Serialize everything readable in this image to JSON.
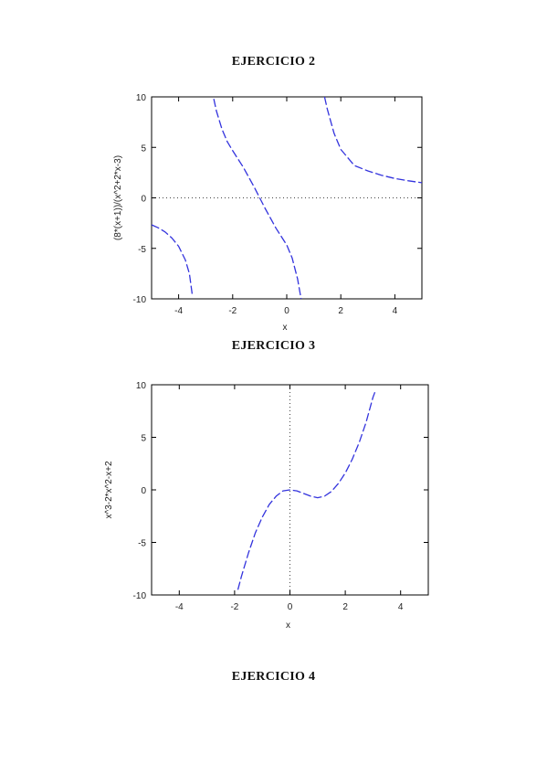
{
  "headings": {
    "ex2": "EJERCICIO 2",
    "ex3": "EJERCICIO 3",
    "ex4": "EJERCICIO 4"
  },
  "chart_data": [
    {
      "type": "line",
      "title": "",
      "xlabel": "x",
      "ylabel": "(8*(x+1))/(x^2+2*x-3)",
      "xlim": [
        -5,
        5
      ],
      "ylim": [
        -10,
        10
      ],
      "xticks": [
        "-4",
        "-2",
        "0",
        "2",
        "4"
      ],
      "yticks": [
        "-10",
        "-5",
        "0",
        "5",
        "10"
      ],
      "grid": false,
      "zero_line": "horizontal dotted at y=0",
      "series_color": "#3333dd",
      "series": [
        {
          "segment": "left branch",
          "x": [
            -5,
            -4.75,
            -4.5,
            -4.25,
            -4,
            -3.75,
            -3.6,
            -3.5
          ],
          "y": [
            -2.67,
            -2.97,
            -3.38,
            -3.97,
            -4.8,
            -6.15,
            -7.5,
            -9.5
          ]
        },
        {
          "segment": "middle branch",
          "x": [
            -2.7,
            -2.6,
            -2.4,
            -2.2,
            -2.0,
            -1.6,
            -1.2,
            -1.0,
            -0.8,
            -0.4,
            0.0,
            0.2,
            0.4,
            0.55,
            0.65
          ],
          "y": [
            9.8,
            8.6,
            6.82,
            5.56,
            4.67,
            3.0,
            1.04,
            0.0,
            -1.04,
            -3.0,
            -4.67,
            -5.95,
            -8.0,
            -10.3,
            -13.0
          ]
        },
        {
          "segment": "right branch",
          "x": [
            1.4,
            1.5,
            1.75,
            2,
            2.5,
            3,
            3.5,
            4,
            4.5,
            5
          ],
          "y": [
            10.0,
            8.8,
            6.4,
            4.8,
            3.2,
            2.67,
            2.24,
            1.92,
            1.69,
            1.5
          ]
        }
      ]
    },
    {
      "type": "line",
      "title": "",
      "xlabel": "x",
      "ylabel": "x^3-2*x^2-x+2",
      "xlim": [
        -5,
        5
      ],
      "ylim": [
        -10,
        10
      ],
      "xticks": [
        "-4",
        "-2",
        "0",
        "2",
        "4"
      ],
      "yticks": [
        "-10",
        "-5",
        "0",
        "5",
        "10"
      ],
      "grid": false,
      "zero_line": "vertical dotted at x=0",
      "series_color": "#3333dd",
      "series": [
        {
          "segment": "curve",
          "x": [
            -1.88,
            -1.75,
            -1.5,
            -1.25,
            -1.0,
            -0.75,
            -0.5,
            -0.25,
            0.0,
            0.25,
            0.5,
            0.75,
            1.0,
            1.25,
            1.5,
            1.75,
            2.0,
            2.25,
            2.5,
            2.75,
            3.0,
            3.1
          ],
          "y": [
            -9.5,
            -8.2,
            -6.0,
            -4.1,
            -2.6,
            -1.4,
            -0.6,
            -0.1,
            0.0,
            -0.1,
            -0.35,
            -0.6,
            -0.75,
            -0.6,
            -0.15,
            0.6,
            1.6,
            2.9,
            4.5,
            6.4,
            8.8,
            9.5
          ]
        }
      ]
    }
  ]
}
